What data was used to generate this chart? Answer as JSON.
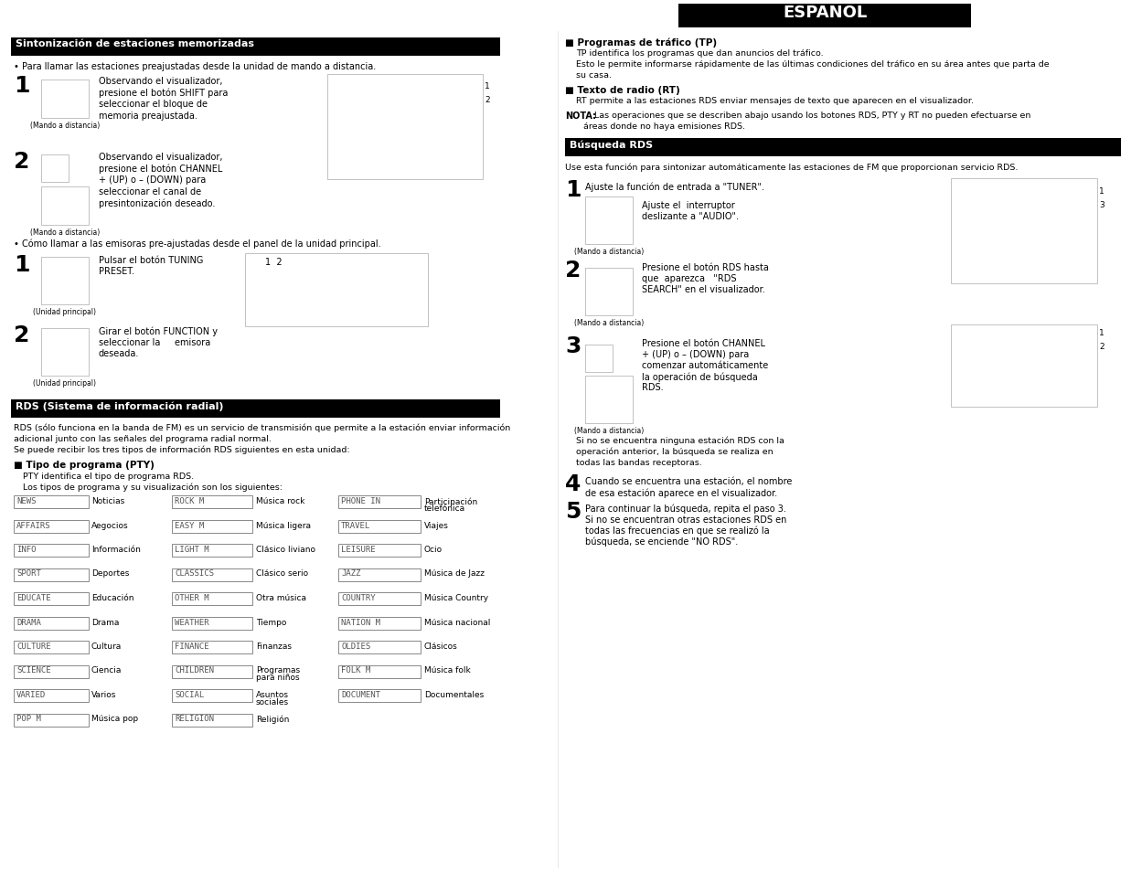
{
  "title": "ESPAÑOL",
  "section1_title": "Sintonización de estaciones memorizadas",
  "section2_title": "RDS (Sistema de información radial)",
  "section3_title": "Búsqueda RDS",
  "section1_bullet": "• Para llamar las estaciones preajustadas desde la unidad de mando a distancia.",
  "section1_step1_text": "Observando el visualizador,\npresione el botón SHIFT para\nseleccionar el bloque de\nmemoria preajustada.",
  "section1_step2_text": "Observando el visualizador,\npresione el botón CHANNEL\n+ (UP) o – (DOWN) para\nseleccionar el canal de\npresintonización deseado.",
  "section1_bullet2": "• Cómo llamar a las emisoras pre-ajustadas desde el panel de la unidad principal.",
  "section1_step1b_text": "Pulsar el botón TUNING\nPRESET.",
  "section1_step2b_text": "Girar el botón FUNCTION y\nseleccionar la     emisora\ndeseada.",
  "section2_body1": "RDS (sólo funciona en la banda de FM) es un servicio de transmisión que permite a la estación enviar información",
  "section2_body2": "adicional junto con las señales del programa radial normal.",
  "section2_body3": "Se puede recibir los tres tipos de información RDS siguientes en esta unidad:",
  "pty_title": "■ Tipo de programa (PTY)",
  "pty_line1": "PTY identifica el tipo de programa RDS.",
  "pty_line2": "Los tipos de programa y su visualización son los siguientes:",
  "tp_title": "■ Programas de tráfico (TP)",
  "tp_line1": "TP identifica los programas que dan anuncios del tráfico.",
  "tp_line2": "Esto le permite informarse rápidamente de las últimas condiciones del tráfico en su área antes que parta de",
  "tp_line3": "su casa.",
  "rt_title": "■ Texto de radio (RT)",
  "rt_line1": "RT permite a las estaciones RDS enviar mensajes de texto que aparecen en el visualizador.",
  "nota_label": "NOTA:",
  "nota_text1": "Las operaciones que se describen abajo usando los botones RDS, PTY y RT no pueden efectuarse en",
  "nota_text2": "áreas donde no haya emisiones RDS.",
  "rds_search_body": "Use esta función para sintonizar automáticamente las estaciones de FM que proporcionan servicio RDS.",
  "rds_step1": "Ajuste la función de entrada a \"TUNER\".",
  "rds_step1b1": "Ajuste el  interruptor",
  "rds_step1b2": "deslizante a \"AUDIO\".",
  "rds_step2_1": "Presione el botón RDS hasta",
  "rds_step2_2": "que  aparezca   \"RDS",
  "rds_step2_3": "SEARCH\" en el visualizador.",
  "rds_step3_1": "Presione el botón CHANNEL",
  "rds_step3_2": "+ (UP) o – (DOWN) para",
  "rds_step3_3": "comenzar automáticamente",
  "rds_step3_4": "la operación de búsqueda",
  "rds_step3_5": "RDS.",
  "rds_step3_note1": "Si no se encuentra ninguna estación RDS con la",
  "rds_step3_note2": "operación anterior, la búsqueda se realiza en",
  "rds_step3_note3": "todas las bandas receptoras.",
  "rds_step4": "Cuando se encuentra una estación, el nombre\nde esa estación aparece en el visualizador.",
  "rds_step5_1": "Para continuar la búsqueda, repita el paso 3.",
  "rds_step5_2": "Si no se encuentran otras estaciones RDS en",
  "rds_step5_3": "todas las frecuencias en que se realizó la",
  "rds_step5_4": "búsqueda, se enciende \"NO RDS\".",
  "mando_label": "(Mando a distancia)",
  "unidad_label": "(Unidad principal)",
  "pty_col1_codes": [
    "NEWS",
    "AFFAIRS",
    "INFO",
    "SPORT",
    "EDUCATE",
    "DRAMA",
    "CULTURE",
    "SCIENCE",
    "VARIED",
    "POP M"
  ],
  "pty_col1_labels": [
    "Noticias",
    "Aegocios",
    "Información",
    "Deportes",
    "Educación",
    "Drama",
    "Cultura",
    "Ciencia",
    "Varios",
    "Música pop"
  ],
  "pty_col2_codes": [
    "ROCK M",
    "EASY M",
    "LIGHT M",
    "CLASSICS",
    "OTHER M",
    "WEATHER",
    "FINANCE",
    "CHILDREN",
    "SOCIAL",
    "RELIGION"
  ],
  "pty_col2_labels": [
    "Música rock",
    "Música ligera",
    "Clásico liviano",
    "Clásico serio",
    "Otra música",
    "Tiempo",
    "Finanzas",
    "Programas\npara niños",
    "Asuntos\nsociales",
    "Religión"
  ],
  "pty_col3_codes": [
    "PHONE IN",
    "TRAVEL",
    "LEISURE",
    "JAZZ",
    "COUNTRY",
    "NATION M",
    "OLDIES",
    "FOLK M",
    "DOCUMENT",
    ""
  ],
  "pty_col3_labels": [
    "Participación\ntelefónica",
    "Viajes",
    "Ocio",
    "Música de Jazz",
    "Música Country",
    "Música nacional",
    "Clásicos",
    "Música folk",
    "Documentales",
    ""
  ],
  "bg_color": "#ffffff",
  "header_bg": "#000000",
  "header_text_color": "#ffffff",
  "section_header_bg": "#000000",
  "section_header_text": "#ffffff"
}
